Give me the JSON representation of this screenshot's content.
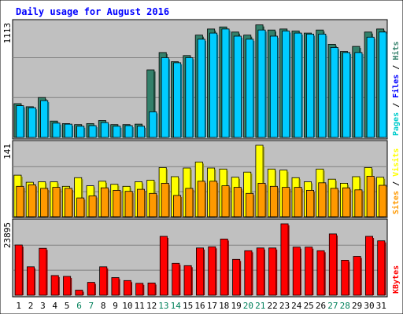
{
  "chart_data": {
    "type": "bar",
    "title": "Daily usage for August 2016",
    "days": [
      "1",
      "2",
      "3",
      "4",
      "5",
      "6",
      "7",
      "8",
      "9",
      "10",
      "11",
      "12",
      "13",
      "14",
      "15",
      "16",
      "17",
      "18",
      "19",
      "20",
      "21",
      "22",
      "23",
      "24",
      "25",
      "26",
      "27",
      "28",
      "29",
      "30",
      "31"
    ],
    "weekend_days": [
      "6",
      "7",
      "13",
      "14",
      "20",
      "21",
      "27",
      "28"
    ],
    "panels": [
      {
        "id": "top",
        "max_label": "1113",
        "ylim": [
          0,
          1113
        ],
        "legend": [
          "Pages",
          "Files",
          "Hits"
        ],
        "series": [
          {
            "name": "Hits",
            "color": "#33806a",
            "values": [
              330,
              300,
              390,
              160,
              135,
              125,
              135,
              165,
              125,
              125,
              130,
              660,
              830,
              740,
              800,
              1000,
              1060,
              1080,
              1030,
              1000,
              1100,
              1050,
              1060,
              1040,
              1020,
              1050,
              910,
              840,
              890,
              1030,
              1060
            ]
          },
          {
            "name": "Files",
            "color": "#00ccff",
            "values": [
              310,
              290,
              360,
              140,
              130,
              110,
              115,
              145,
              110,
              115,
              110,
              250,
              780,
              730,
              780,
              960,
              1020,
              1060,
              990,
              960,
              1050,
              990,
              1040,
              1020,
              1010,
              1010,
              880,
              830,
              830,
              980,
              1030
            ]
          },
          {
            "name": "Pages",
            "color": "#0099cc",
            "values": []
          }
        ]
      },
      {
        "id": "middle",
        "max_label": "141",
        "ylim": [
          0,
          141
        ],
        "legend": [
          "Sites",
          "Visits"
        ],
        "series": [
          {
            "name": "Visits",
            "color": "#ffff00",
            "values": [
              82,
              68,
              69,
              69,
              60,
              77,
              61,
              70,
              64,
              60,
              69,
              72,
              97,
              79,
              96,
              108,
              96,
              94,
              78,
              88,
              141,
              94,
              92,
              77,
              69,
              94,
              74,
              66,
              79,
              97,
              78
            ]
          },
          {
            "name": "Sites",
            "color": "#ff9900",
            "values": [
              60,
              63,
              56,
              58,
              56,
              37,
              41,
              57,
              52,
              50,
              54,
              46,
              66,
              42,
              56,
              70,
              70,
              61,
              58,
              46,
              66,
              60,
              58,
              58,
              52,
              67,
              56,
              57,
              53,
              80,
              62
            ]
          }
        ]
      },
      {
        "id": "bottom",
        "max_label": "23895",
        "ylim": [
          0,
          23895
        ],
        "legend": [
          "KBytes"
        ],
        "series": [
          {
            "name": "KBytes",
            "color": "#ff0000",
            "values": [
              16800,
              9500,
              15700,
              6600,
              6300,
              1700,
              4300,
              9500,
              5900,
              4900,
              4000,
              4100,
              19700,
              10700,
              9900,
              15800,
              16200,
              18800,
              12000,
              14900,
              15800,
              15800,
              23895,
              16100,
              16100,
              14900,
              20500,
              11700,
              13000,
              19700,
              18200
            ]
          }
        ]
      }
    ]
  }
}
